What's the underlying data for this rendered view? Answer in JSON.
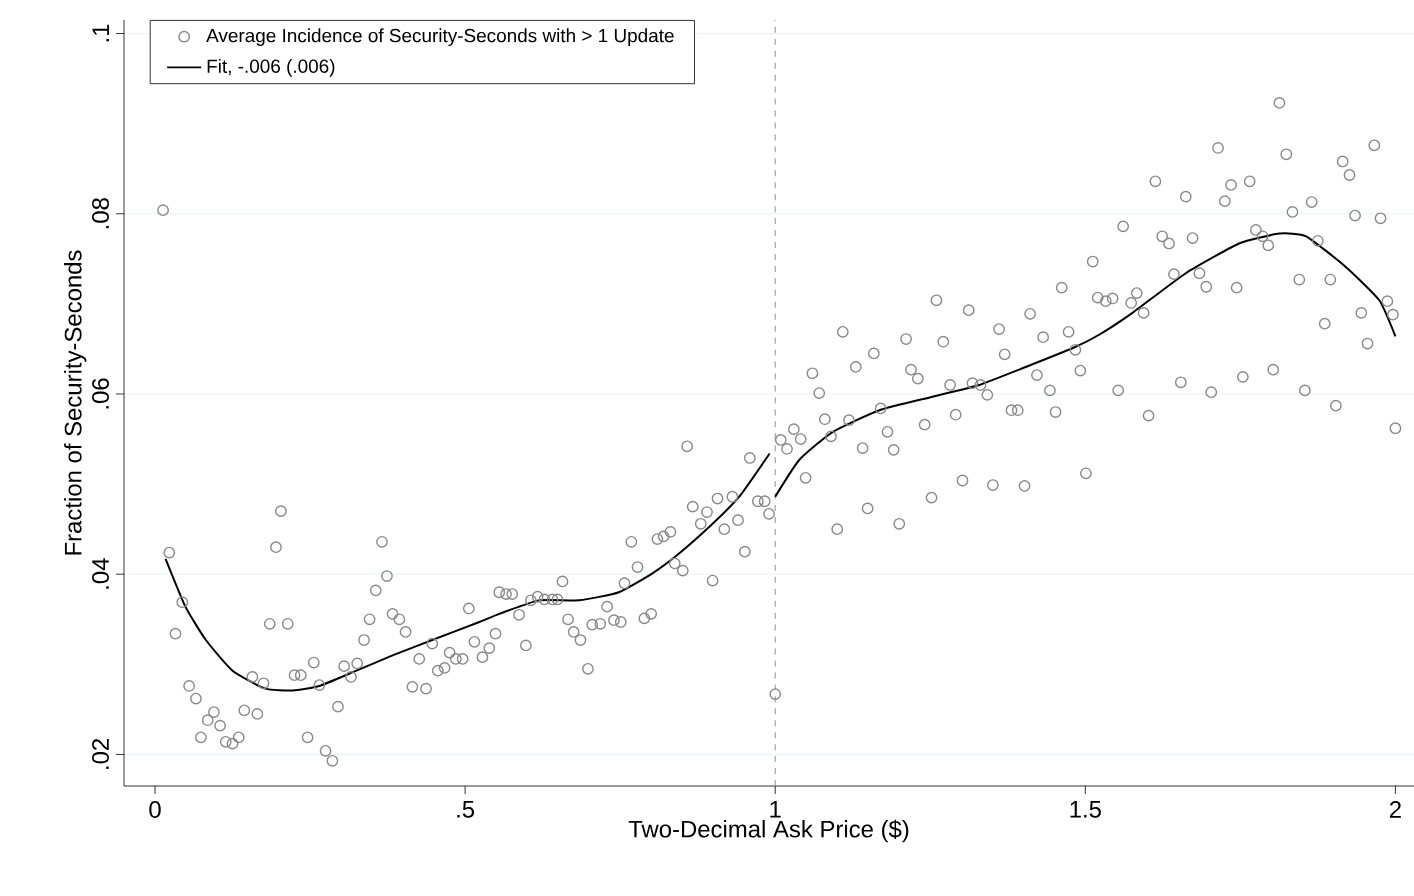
{
  "chart_data": {
    "type": "scatter",
    "xlabel": "Two-Decimal Ask Price ($)",
    "ylabel": "Fraction of Security-Seconds",
    "xlim": [
      -0.05,
      2.03
    ],
    "ylim": [
      0.0165,
      0.1015
    ],
    "xticks": [
      0,
      {
        "value": 0.5,
        "label": ".5"
      },
      1,
      1.5,
      2
    ],
    "yticks": [
      {
        "value": 0.02,
        "label": ".02"
      },
      {
        "value": 0.04,
        "label": ".04"
      },
      {
        "value": 0.06,
        "label": ".06"
      },
      {
        "value": 0.08,
        "label": ".08"
      },
      {
        "value": 0.1,
        "label": ".1"
      }
    ],
    "grid": "y",
    "legend": "top left",
    "ref_lines": [
      {
        "axis": "x",
        "value": 1,
        "color": "#a0a0a0",
        "line_style": "dashed"
      }
    ],
    "series": [
      {
        "name": "Average Incidence of Security-Seconds with > 1 Update",
        "type": "scatter",
        "marker": "circle",
        "color": "#888888",
        "x": [
          0.013,
          0.023,
          0.044,
          0.033,
          0.055,
          0.066,
          0.095,
          0.085,
          0.105,
          0.074,
          0.114,
          0.125,
          0.135,
          0.144,
          0.165,
          0.157,
          0.175,
          0.185,
          0.214,
          0.195,
          0.203,
          0.225,
          0.235,
          0.256,
          0.265,
          0.246,
          0.275,
          0.286,
          0.295,
          0.305,
          0.316,
          0.326,
          0.337,
          0.346,
          0.356,
          0.374,
          0.366,
          0.383,
          0.394,
          0.404,
          0.415,
          0.437,
          0.426,
          0.447,
          0.456,
          0.467,
          0.475,
          0.485,
          0.496,
          0.506,
          0.515,
          0.528,
          0.539,
          0.549,
          0.555,
          0.566,
          0.576,
          0.587,
          0.598,
          0.606,
          0.617,
          0.628,
          0.641,
          0.649,
          0.657,
          0.666,
          0.675,
          0.686,
          0.698,
          0.705,
          0.718,
          0.729,
          0.74,
          0.751,
          0.757,
          0.768,
          0.778,
          0.789,
          0.8,
          0.81,
          0.82,
          0.831,
          0.838,
          0.851,
          0.858,
          0.867,
          0.88,
          0.89,
          0.899,
          0.907,
          0.918,
          0.931,
          0.94,
          0.951,
          0.959,
          0.972,
          0.983,
          0.99,
          1.0,
          1.009,
          1.019,
          1.03,
          1.041,
          1.049,
          1.06,
          1.071,
          1.08,
          1.09,
          1.1,
          1.109,
          1.119,
          1.13,
          1.141,
          1.149,
          1.159,
          1.17,
          1.181,
          1.191,
          1.2,
          1.211,
          1.219,
          1.23,
          1.241,
          1.252,
          1.26,
          1.271,
          1.282,
          1.291,
          1.302,
          1.312,
          1.318,
          1.331,
          1.342,
          1.351,
          1.361,
          1.37,
          1.381,
          1.391,
          1.402,
          1.411,
          1.422,
          1.432,
          1.443,
          1.452,
          1.462,
          1.473,
          1.484,
          1.492,
          1.501,
          1.512,
          1.52,
          1.533,
          1.544,
          1.553,
          1.561,
          1.574,
          1.583,
          1.594,
          1.602,
          1.613,
          1.624,
          1.635,
          1.643,
          1.654,
          1.662,
          1.673,
          1.684,
          1.695,
          1.703,
          1.714,
          1.725,
          1.735,
          1.744,
          1.754,
          1.765,
          1.775,
          1.786,
          1.795,
          1.803,
          1.813,
          1.824,
          1.834,
          1.845,
          1.854,
          1.865,
          1.875,
          1.886,
          1.895,
          1.904,
          1.915,
          1.926,
          1.935,
          1.945,
          1.955,
          1.966,
          1.976,
          1.987,
          1.996,
          2.0
        ],
        "values": [
          0.0804,
          0.0424,
          0.0369,
          0.0334,
          0.0276,
          0.0262,
          0.0247,
          0.0238,
          0.0232,
          0.0219,
          0.0214,
          0.0212,
          0.0219,
          0.0249,
          0.0245,
          0.0286,
          0.0279,
          0.0345,
          0.0345,
          0.043,
          0.047,
          0.0288,
          0.0288,
          0.0302,
          0.0277,
          0.0219,
          0.0204,
          0.0193,
          0.0253,
          0.0298,
          0.0286,
          0.0301,
          0.0327,
          0.035,
          0.0382,
          0.0398,
          0.0436,
          0.0356,
          0.035,
          0.0336,
          0.0275,
          0.0273,
          0.0306,
          0.0323,
          0.0293,
          0.0296,
          0.0313,
          0.0306,
          0.0306,
          0.0362,
          0.0325,
          0.0308,
          0.0318,
          0.0334,
          0.038,
          0.0378,
          0.0378,
          0.0355,
          0.0321,
          0.0371,
          0.0375,
          0.0372,
          0.0372,
          0.0372,
          0.0392,
          0.035,
          0.0336,
          0.0327,
          0.0295,
          0.0344,
          0.0345,
          0.0364,
          0.0349,
          0.0347,
          0.039,
          0.0436,
          0.0408,
          0.0351,
          0.0356,
          0.0439,
          0.0442,
          0.0447,
          0.0412,
          0.0404,
          0.0542,
          0.0475,
          0.0456,
          0.0469,
          0.0393,
          0.0484,
          0.045,
          0.0486,
          0.046,
          0.0425,
          0.0529,
          0.0481,
          0.0481,
          0.0467,
          0.0267,
          0.0549,
          0.0539,
          0.0561,
          0.055,
          0.0507,
          0.0623,
          0.0601,
          0.0572,
          0.0553,
          0.045,
          0.0669,
          0.0571,
          0.063,
          0.054,
          0.0473,
          0.0645,
          0.0584,
          0.0558,
          0.0538,
          0.0456,
          0.0661,
          0.0627,
          0.0617,
          0.0566,
          0.0485,
          0.0704,
          0.0658,
          0.061,
          0.0577,
          0.0504,
          0.0693,
          0.0612,
          0.061,
          0.0599,
          0.0499,
          0.0672,
          0.0644,
          0.0582,
          0.0582,
          0.0498,
          0.0689,
          0.0621,
          0.0663,
          0.0604,
          0.058,
          0.0718,
          0.0669,
          0.0649,
          0.0626,
          0.0512,
          0.0747,
          0.0707,
          0.0703,
          0.0706,
          0.0604,
          0.0786,
          0.0701,
          0.0712,
          0.069,
          0.0576,
          0.0836,
          0.0775,
          0.0767,
          0.0733,
          0.0613,
          0.0819,
          0.0773,
          0.0734,
          0.0719,
          0.0602,
          0.0873,
          0.0814,
          0.0832,
          0.0718,
          0.0619,
          0.0836,
          0.0782,
          0.0775,
          0.0765,
          0.0627,
          0.0923,
          0.0866,
          0.0802,
          0.0727,
          0.0604,
          0.0813,
          0.077,
          0.0678,
          0.0727,
          0.0587,
          0.0858,
          0.0843,
          0.0798,
          0.069,
          0.0656,
          0.0876,
          0.0795,
          0.0703,
          0.0688,
          0.0562
        ]
      },
      {
        "name": "Fit, -.006 (.006)",
        "type": "line",
        "line_style": "solid",
        "color": "#000000",
        "x": [
          0.017,
          0.049,
          0.082,
          0.125,
          0.178,
          0.222,
          0.265,
          0.318,
          0.383,
          0.447,
          0.523,
          0.555,
          0.619,
          0.684,
          0.748,
          0.802,
          0.845,
          0.899,
          0.942,
          0.991
        ],
        "values": [
          0.0417,
          0.0364,
          0.0327,
          0.0293,
          0.0273,
          0.0271,
          0.0276,
          0.0291,
          0.031,
          0.0327,
          0.0347,
          0.0356,
          0.0371,
          0.0371,
          0.038,
          0.0401,
          0.0423,
          0.0456,
          0.0486,
          0.0534
        ]
      },
      {
        "type": "line",
        "line_style": "solid",
        "color": "#000000",
        "x": [
          1.0,
          1.039,
          1.093,
          1.168,
          1.254,
          1.329,
          1.404,
          1.48,
          1.523,
          1.576,
          1.662,
          1.748,
          1.813,
          1.856,
          1.92,
          1.974,
          2.0
        ],
        "values": [
          0.0486,
          0.0527,
          0.0558,
          0.0582,
          0.0597,
          0.061,
          0.063,
          0.0651,
          0.0666,
          0.069,
          0.0734,
          0.0767,
          0.0778,
          0.0775,
          0.0741,
          0.0704,
          0.0664
        ]
      }
    ]
  }
}
